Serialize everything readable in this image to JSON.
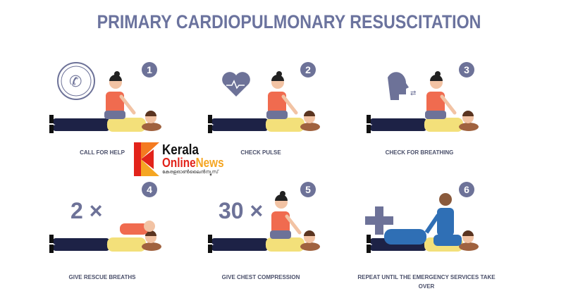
{
  "title": "PRIMARY CARDIOPULMONARY RESUSCITATION",
  "colors": {
    "title": "#6b739e",
    "badge": "#6d7298",
    "rescuer_shirt": "#f06b4f",
    "patient_shirt": "#f3e07a",
    "pants": "#1d2246",
    "paramedic": "#2f6fb5"
  },
  "steps": [
    {
      "number": "1",
      "label": "CALL FOR HELP",
      "icon": "phone-icon"
    },
    {
      "number": "2",
      "label": "CHECK PULSE",
      "icon": "heart-pulse-icon"
    },
    {
      "number": "3",
      "label": "CHECK FOR BREATHING",
      "icon": "head-breath-icon"
    },
    {
      "number": "4",
      "label": "GIVE RESCUE BREATHS",
      "count": "2 ×"
    },
    {
      "number": "5",
      "label": "GIVE CHEST COMPRESSION",
      "count": "30 ×"
    },
    {
      "number": "6",
      "label": "REPEAT UNTIL THE EMERGENCY SERVICES TAKE OVER",
      "icon": "medical-cross-icon"
    }
  ],
  "watermark": {
    "line1": "Kerala",
    "line2a": "Online",
    "line2b": "News",
    "line3": "കേരളഓൺലൈൻന്യൂസ്"
  }
}
